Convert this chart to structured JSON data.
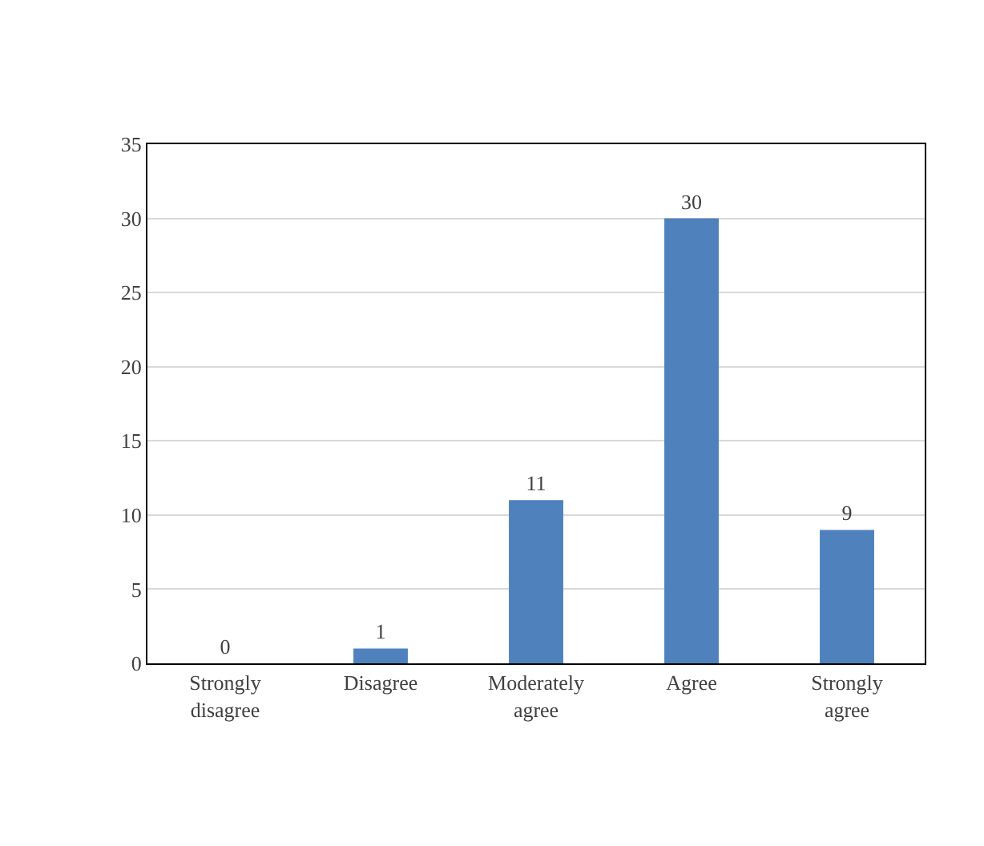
{
  "chart_data": {
    "type": "bar",
    "categories": [
      "Strongly\ndisagree",
      "Disagree",
      "Moderately\nagree",
      "Agree",
      "Strongly\nagree"
    ],
    "values": [
      0,
      1,
      11,
      30,
      9
    ],
    "color": "#4f81bd",
    "ylim": [
      0,
      35
    ],
    "yticks": [
      0,
      5,
      10,
      15,
      20,
      25,
      30,
      35
    ],
    "grid": "y",
    "data_labels": true
  }
}
